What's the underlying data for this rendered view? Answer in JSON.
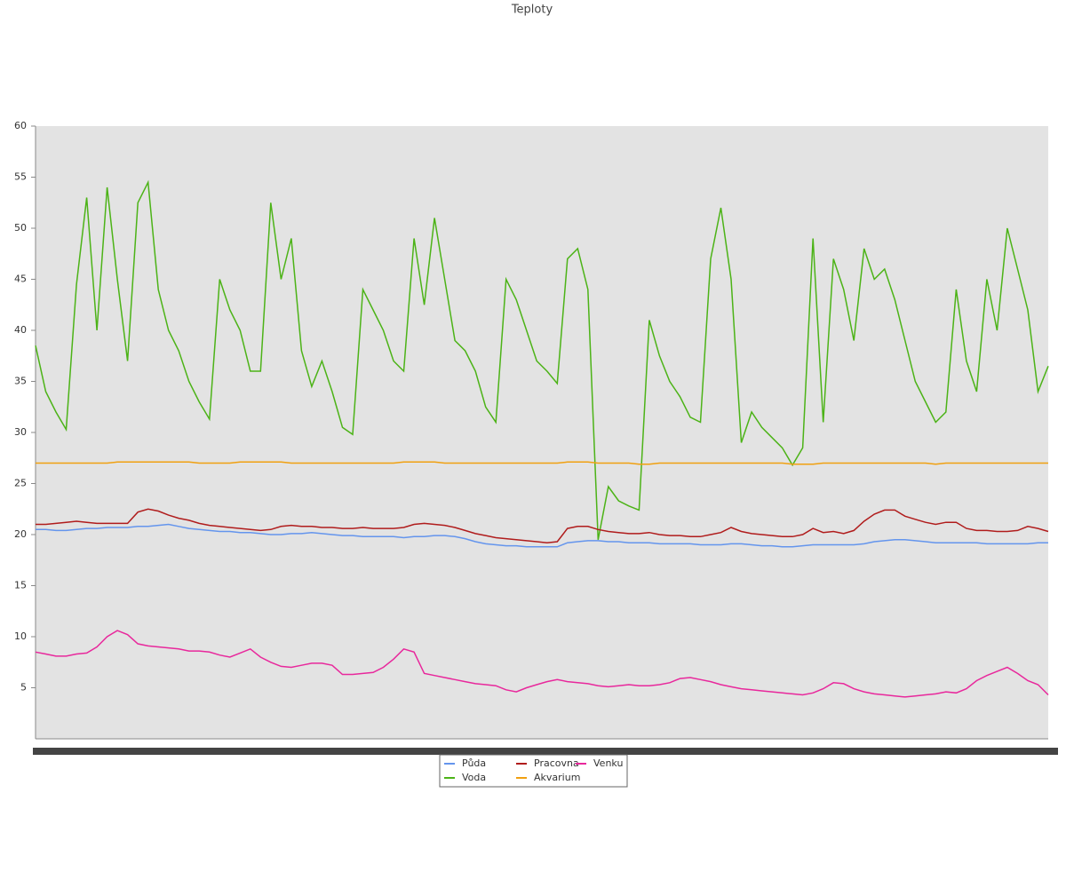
{
  "chart_data": {
    "type": "line",
    "title": "Teploty",
    "categories": [
      null,
      null,
      null,
      null,
      null,
      null,
      null,
      null,
      null,
      null,
      null,
      null,
      null,
      null,
      null,
      null,
      null,
      null,
      null,
      null,
      null,
      null,
      null,
      null,
      null,
      null,
      null,
      null,
      null,
      null,
      null,
      null,
      null,
      null,
      null,
      null,
      null,
      null,
      null,
      null,
      null,
      null,
      null,
      null,
      null,
      null,
      null,
      null,
      null,
      null,
      null,
      null,
      null,
      null,
      null,
      null,
      null,
      null,
      null,
      null,
      null,
      null,
      null,
      null,
      null,
      null,
      null,
      null,
      null,
      null,
      null,
      null,
      null,
      null,
      null,
      null,
      null,
      null,
      null,
      null,
      null,
      null,
      null,
      null,
      null,
      null,
      null,
      null,
      null,
      null,
      null,
      null,
      null,
      null,
      null,
      null,
      null,
      null,
      null,
      null
    ],
    "ylim": [
      0,
      60
    ],
    "yticks": [
      5,
      10,
      15,
      20,
      25,
      30,
      35,
      40,
      45,
      50,
      55,
      60
    ],
    "grid": false,
    "legend": "bottom",
    "series": [
      {
        "name": "Půda",
        "color": "#6495ed",
        "values": [
          20.5,
          20.5,
          20.4,
          20.4,
          20.5,
          20.6,
          20.6,
          20.7,
          20.7,
          20.7,
          20.8,
          20.8,
          20.9,
          21.0,
          20.8,
          20.6,
          20.5,
          20.4,
          20.3,
          20.3,
          20.2,
          20.2,
          20.1,
          20.0,
          20.0,
          20.1,
          20.1,
          20.2,
          20.1,
          20.0,
          19.9,
          19.9,
          19.8,
          19.8,
          19.8,
          19.8,
          19.7,
          19.8,
          19.8,
          19.9,
          19.9,
          19.8,
          19.6,
          19.3,
          19.1,
          19.0,
          18.9,
          18.9,
          18.8,
          18.8,
          18.8,
          18.8,
          19.2,
          19.3,
          19.4,
          19.4,
          19.3,
          19.3,
          19.2,
          19.2,
          19.2,
          19.1,
          19.1,
          19.1,
          19.1,
          19.0,
          19.0,
          19.0,
          19.1,
          19.1,
          19.0,
          18.9,
          18.9,
          18.8,
          18.8,
          18.9,
          19.0,
          19.0,
          19.0,
          19.0,
          19.0,
          19.1,
          19.3,
          19.4,
          19.5,
          19.5,
          19.4,
          19.3,
          19.2,
          19.2,
          19.2,
          19.2,
          19.2,
          19.1,
          19.1,
          19.1,
          19.1,
          19.1,
          19.2,
          19.2
        ]
      },
      {
        "name": "Voda",
        "color": "#4cb317",
        "values": [
          38.5,
          34,
          32,
          30.3,
          44.5,
          53,
          40,
          54,
          45,
          37,
          52.5,
          54.5,
          44,
          40,
          38,
          35,
          33,
          31.3,
          45,
          42,
          40,
          36,
          36,
          52.5,
          45,
          49,
          38,
          34.5,
          37,
          34,
          30.5,
          29.8,
          44,
          42,
          40,
          37,
          36,
          49,
          42.5,
          51,
          45,
          39,
          38,
          36,
          32.5,
          31,
          45,
          43,
          40,
          37,
          36,
          34.8,
          47,
          48,
          44,
          19.5,
          24.7,
          23.3,
          22.8,
          22.4,
          41,
          37.5,
          35,
          33.5,
          31.5,
          31,
          47,
          52,
          45,
          29,
          32,
          30.5,
          29.5,
          28.5,
          26.8,
          28.5,
          49,
          31,
          47,
          44,
          39,
          48,
          45,
          46,
          43,
          39,
          35,
          33,
          31,
          32,
          44,
          37,
          34,
          45,
          40,
          50,
          46,
          42,
          34,
          36.5
        ]
      },
      {
        "name": "Pracovna",
        "color": "#b01c1c",
        "values": [
          21.0,
          21.0,
          21.1,
          21.2,
          21.3,
          21.2,
          21.1,
          21.1,
          21.1,
          21.1,
          22.2,
          22.5,
          22.3,
          21.9,
          21.6,
          21.4,
          21.1,
          20.9,
          20.8,
          20.7,
          20.6,
          20.5,
          20.4,
          20.5,
          20.8,
          20.9,
          20.8,
          20.8,
          20.7,
          20.7,
          20.6,
          20.6,
          20.7,
          20.6,
          20.6,
          20.6,
          20.7,
          21.0,
          21.1,
          21.0,
          20.9,
          20.7,
          20.4,
          20.1,
          19.9,
          19.7,
          19.6,
          19.5,
          19.4,
          19.3,
          19.2,
          19.3,
          20.6,
          20.8,
          20.8,
          20.5,
          20.3,
          20.2,
          20.1,
          20.1,
          20.2,
          20.0,
          19.9,
          19.9,
          19.8,
          19.8,
          20.0,
          20.2,
          20.7,
          20.3,
          20.1,
          20.0,
          19.9,
          19.8,
          19.8,
          20.0,
          20.6,
          20.2,
          20.3,
          20.1,
          20.4,
          21.3,
          22.0,
          22.4,
          22.4,
          21.8,
          21.5,
          21.2,
          21.0,
          21.2,
          21.2,
          20.6,
          20.4,
          20.4,
          20.3,
          20.3,
          20.4,
          20.8,
          20.6,
          20.3
        ]
      },
      {
        "name": "Akvarium",
        "color": "#f0a010",
        "values": [
          27,
          27,
          27,
          27,
          27,
          27,
          27,
          27,
          27.1,
          27.1,
          27.1,
          27.1,
          27.1,
          27.1,
          27.1,
          27.1,
          27,
          27,
          27,
          27,
          27.1,
          27.1,
          27.1,
          27.1,
          27.1,
          27,
          27,
          27,
          27,
          27,
          27,
          27,
          27,
          27,
          27,
          27,
          27.1,
          27.1,
          27.1,
          27.1,
          27,
          27,
          27,
          27,
          27,
          27,
          27,
          27,
          27,
          27,
          27,
          27,
          27.1,
          27.1,
          27.1,
          27,
          27,
          27,
          27,
          26.9,
          26.9,
          27,
          27,
          27,
          27,
          27,
          27,
          27,
          27,
          27,
          27,
          27,
          27,
          27,
          26.9,
          26.9,
          26.9,
          27,
          27,
          27,
          27,
          27,
          27,
          27,
          27,
          27,
          27,
          27,
          26.9,
          27,
          27,
          27,
          27,
          27,
          27,
          27,
          27,
          27,
          27,
          27
        ]
      },
      {
        "name": "Venku",
        "color": "#e8289c",
        "values": [
          8.5,
          8.3,
          8.1,
          8.1,
          8.3,
          8.4,
          9.0,
          10.0,
          10.6,
          10.2,
          9.3,
          9.1,
          9.0,
          8.9,
          8.8,
          8.6,
          8.6,
          8.5,
          8.2,
          8.0,
          8.4,
          8.8,
          8.0,
          7.5,
          7.1,
          7.0,
          7.2,
          7.4,
          7.4,
          7.2,
          6.3,
          6.3,
          6.4,
          6.5,
          7.0,
          7.8,
          8.8,
          8.5,
          6.4,
          6.2,
          6.0,
          5.8,
          5.6,
          5.4,
          5.3,
          5.2,
          4.8,
          4.6,
          5.0,
          5.3,
          5.6,
          5.8,
          5.6,
          5.5,
          5.4,
          5.2,
          5.1,
          5.2,
          5.3,
          5.2,
          5.2,
          5.3,
          5.5,
          5.9,
          6.0,
          5.8,
          5.6,
          5.3,
          5.1,
          4.9,
          4.8,
          4.7,
          4.6,
          4.5,
          4.4,
          4.3,
          4.5,
          4.9,
          5.5,
          5.4,
          4.9,
          4.6,
          4.4,
          4.3,
          4.2,
          4.1,
          4.2,
          4.3,
          4.4,
          4.6,
          4.5,
          4.9,
          5.7,
          6.2,
          6.6,
          7.0,
          6.4,
          5.7,
          5.3,
          4.3
        ]
      }
    ]
  }
}
